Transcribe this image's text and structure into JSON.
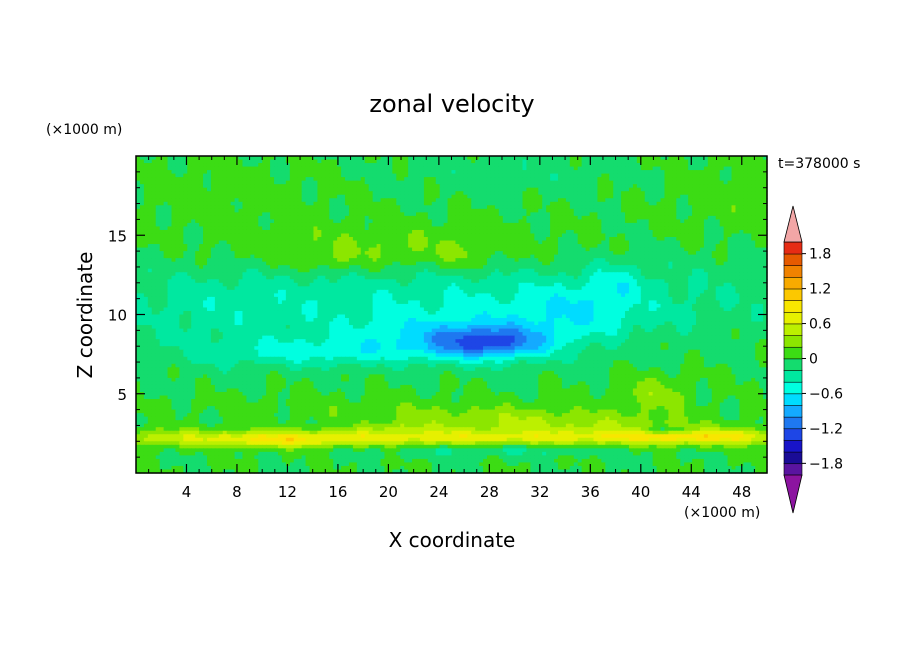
{
  "chart_data": {
    "type": "heatmap",
    "title": "zonal velocity",
    "xlabel": "X coordinate",
    "ylabel": "Z coordinate",
    "x_unit": "(×1000 m)",
    "y_unit": "(×1000 m)",
    "time_label": "t=378000 s",
    "xlim": [
      0,
      50
    ],
    "ylim": [
      0,
      20
    ],
    "x_ticks": [
      4,
      8,
      12,
      16,
      20,
      24,
      28,
      32,
      36,
      40,
      44,
      48
    ],
    "y_ticks": [
      5,
      10,
      15
    ],
    "x_tick_labels": [
      "4",
      "8",
      "12",
      "16",
      "20",
      "24",
      "28",
      "32",
      "36",
      "40",
      "44",
      "48"
    ],
    "y_tick_labels": [
      "5",
      "10",
      "15"
    ],
    "colorbar": {
      "levels": [
        -2.0,
        -1.8,
        -1.6,
        -1.4,
        -1.2,
        -1.0,
        -0.8,
        -0.6,
        -0.4,
        -0.2,
        0.0,
        0.2,
        0.4,
        0.6,
        0.8,
        1.0,
        1.2,
        1.4,
        1.6,
        1.8,
        2.0
      ],
      "colors": [
        "#5a14a0",
        "#1a0c96",
        "#1814c8",
        "#1e46e6",
        "#1e78f0",
        "#14aaff",
        "#00dcff",
        "#00ffe0",
        "#00e8a0",
        "#14dc6e",
        "#3cdc14",
        "#8ce600",
        "#bcf000",
        "#e6f000",
        "#f8e600",
        "#fcc800",
        "#f8aa00",
        "#f08200",
        "#e65a00",
        "#e62c14"
      ],
      "under_color": "#8c14a0",
      "over_color": "#f2a6a6",
      "labels": [
        "1.8",
        "1.2",
        "0.6",
        "0",
        "−0.6",
        "−1.2",
        "−1.8"
      ],
      "label_values": [
        1.8,
        1.2,
        0.6,
        0.0,
        -0.6,
        -1.2,
        -1.8
      ]
    },
    "field_background": 0.0,
    "field_features": [
      {
        "x": 25,
        "y": 8.5,
        "sx": 9,
        "sy": 1.4,
        "v": -0.45
      },
      {
        "x": 28,
        "y": 8.2,
        "sx": 4.5,
        "sy": 1.0,
        "v": -0.85
      },
      {
        "x": 14,
        "y": 7.6,
        "sx": 8,
        "sy": 0.9,
        "v": -0.35
      },
      {
        "x": 35,
        "y": 10.2,
        "sx": 5,
        "sy": 1.5,
        "v": -0.3
      },
      {
        "x": 38,
        "y": 12.0,
        "sx": 2.2,
        "sy": 1.2,
        "v": -0.25
      },
      {
        "x": 24,
        "y": 11.0,
        "sx": 26,
        "sy": 2.8,
        "v": -0.38
      },
      {
        "x": 6,
        "y": 9.0,
        "sx": 6,
        "sy": 3.2,
        "v": -0.12
      },
      {
        "x": 20,
        "y": 14.0,
        "sx": 13,
        "sy": 1.6,
        "v": 0.3
      },
      {
        "x": 15,
        "y": 13.4,
        "sx": 2.5,
        "sy": 0.6,
        "v": 0.15
      },
      {
        "x": 26,
        "y": 13.8,
        "sx": 1.6,
        "sy": 0.8,
        "v": 0.15
      },
      {
        "x": 7,
        "y": 17.5,
        "sx": 8,
        "sy": 2.0,
        "v": 0.1
      },
      {
        "x": 48,
        "y": 17.5,
        "sx": 6,
        "sy": 2.5,
        "v": 0.12
      },
      {
        "x": 30,
        "y": 19.0,
        "sx": 10,
        "sy": 1.5,
        "v": -0.12
      },
      {
        "x": 20,
        "y": 2.2,
        "sx": 30,
        "sy": 0.55,
        "v": 0.72
      },
      {
        "x": 11,
        "y": 2.0,
        "sx": 4,
        "sy": 0.4,
        "v": 0.3
      },
      {
        "x": 21,
        "y": 2.9,
        "sx": 2.5,
        "sy": 0.3,
        "v": 0.2
      },
      {
        "x": 30,
        "y": 3.3,
        "sx": 10,
        "sy": 0.8,
        "v": 0.35
      },
      {
        "x": 45,
        "y": 2.3,
        "sx": 8,
        "sy": 0.45,
        "v": 0.55
      },
      {
        "x": 41,
        "y": 5.0,
        "sx": 3,
        "sy": 1.2,
        "v": 0.3
      },
      {
        "x": 28,
        "y": 1.5,
        "sx": 10,
        "sy": 0.45,
        "v": -0.3
      },
      {
        "x": 42,
        "y": 2.7,
        "sx": 2,
        "sy": 0.25,
        "v": -0.45
      },
      {
        "x": 18,
        "y": 4.2,
        "sx": 15,
        "sy": 0.8,
        "v": 0.1
      },
      {
        "x": 40,
        "y": 3.0,
        "sx": 8,
        "sy": 0.6,
        "v": 0.15
      }
    ]
  }
}
